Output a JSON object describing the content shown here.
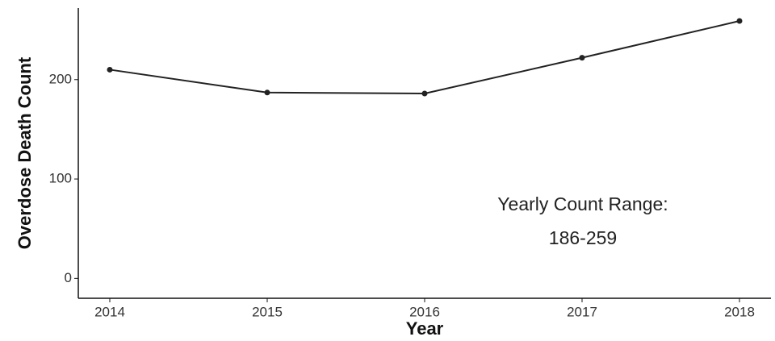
{
  "chart_data": {
    "type": "line",
    "x_label": "Year",
    "y_label": "Overdose Death Count",
    "x": [
      2014,
      2015,
      2016,
      2017,
      2018
    ],
    "series": [
      {
        "name": "Overdose Death Count",
        "color": "#222222",
        "values": [
          210,
          187,
          186,
          222,
          259
        ]
      }
    ],
    "xlim": [
      2013.8,
      2018.2
    ],
    "xticks": [
      2014,
      2015,
      2016,
      2017,
      2018
    ],
    "ylim": [
      -20,
      272
    ],
    "yticks": [
      0,
      100,
      200
    ],
    "annotations": [
      "Yearly Count Range:",
      "186-259"
    ]
  }
}
